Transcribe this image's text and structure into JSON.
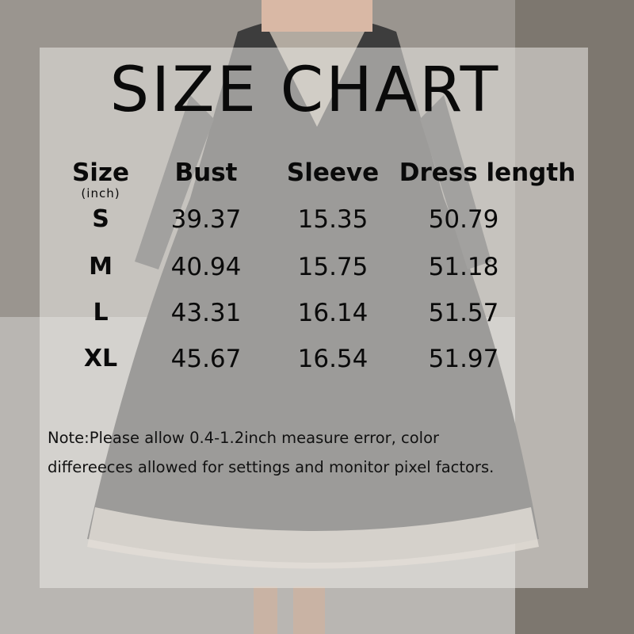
{
  "title": "SIZE CHART",
  "table": {
    "headers": [
      "Size",
      "Bust",
      "Sleeve",
      "Dress length"
    ],
    "unit": "(inch)",
    "rows": [
      {
        "size": "S",
        "bust": "39.37",
        "sleeve": "15.35",
        "length": "50.79"
      },
      {
        "size": "M",
        "bust": "40.94",
        "sleeve": "15.75",
        "length": "51.18"
      },
      {
        "size": "L",
        "bust": "43.31",
        "sleeve": "16.14",
        "length": "51.57"
      },
      {
        "size": "XL",
        "bust": "45.67",
        "sleeve": "16.54",
        "length": "51.97"
      }
    ]
  },
  "note": {
    "line1": "Note:Please allow 0.4-1.2inch measure error, color",
    "line2": "differeeces allowed for settings and monitor pixel factors."
  }
}
